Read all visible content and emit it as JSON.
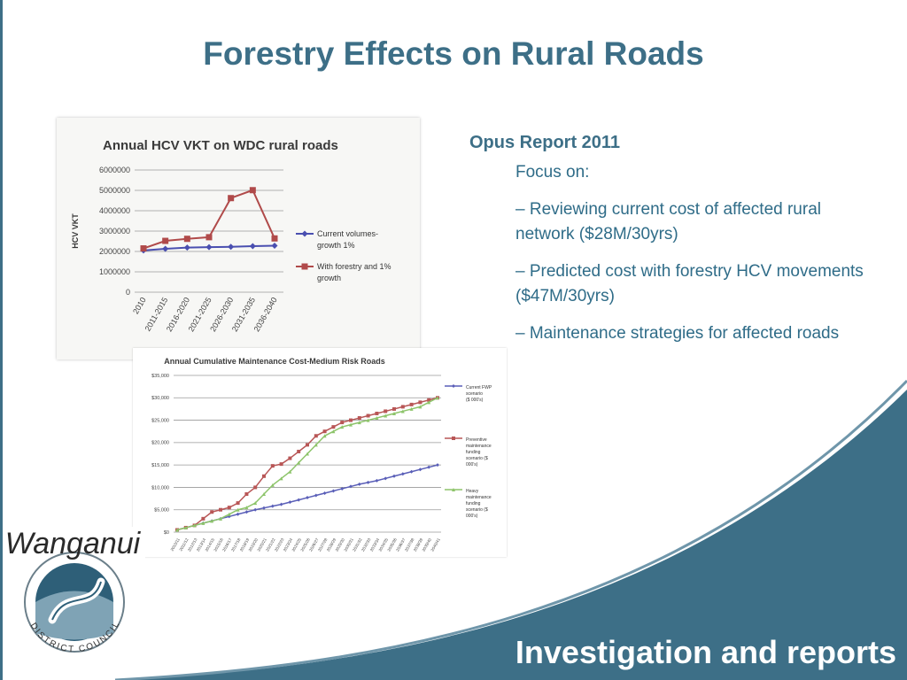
{
  "slide": {
    "title": "Forestry Effects on Rural Roads",
    "footer": "Investigation and reports",
    "accent_color": "#3d6f87"
  },
  "report": {
    "heading": "Opus Report 2011",
    "focus": "Focus on:",
    "items": [
      "– Reviewing current cost of affected rural network ($28M/30yrs)",
      "– Predicted cost with forestry HCV movements ($47M/30yrs)",
      "– Maintenance strategies for affected roads"
    ]
  },
  "logo": {
    "icon": "wanganui-district-council-logo",
    "name": "Wanganui",
    "subtitle": "DISTRICT COUNCIL"
  },
  "chart_data": [
    {
      "type": "line",
      "title": "Annual HCV VKT on WDC rural roads",
      "ylabel": "HCV VKT",
      "xlabel": "",
      "categories": [
        "2010",
        "2011-2015",
        "2016-2020",
        "2021-2025",
        "2026-2030",
        "2031-2035",
        "2036-2040"
      ],
      "ylim": [
        0,
        6000000
      ],
      "yticks": [
        0,
        1000000,
        2000000,
        3000000,
        4000000,
        5000000,
        6000000
      ],
      "ytick_labels": [
        "0",
        "1000000",
        "2000000",
        "3000000",
        "4000000",
        "5000000",
        "6000000"
      ],
      "grid": true,
      "legend": "right",
      "series": [
        {
          "name": "Current volumes-growth 1%",
          "legend_lines": [
            "Current volumes-",
            "growth 1%"
          ],
          "color": "#4a4fb0",
          "marker": "diamond",
          "values": [
            2050000,
            2130000,
            2190000,
            2210000,
            2230000,
            2260000,
            2280000
          ]
        },
        {
          "name": "With forestry and 1% growth",
          "legend_lines": [
            "With forestry and 1%",
            "growth"
          ],
          "color": "#b04a4a",
          "marker": "square",
          "values": [
            2150000,
            2520000,
            2620000,
            2700000,
            4620000,
            5010000,
            2640000
          ]
        }
      ]
    },
    {
      "type": "line",
      "title": "Annual Cumulative Maintenance Cost-Medium Risk Roads",
      "xlabel": "",
      "ylabel": "",
      "ylim": [
        0,
        35000
      ],
      "yticks": [
        0,
        5000,
        10000,
        15000,
        20000,
        25000,
        30000,
        35000
      ],
      "ytick_labels": [
        "$0",
        "$5,000",
        "$10,000",
        "$15,000",
        "$20,000",
        "$25,000",
        "$30,000",
        "$35,000"
      ],
      "categories": [
        "2010/11",
        "2011/12",
        "2012/13",
        "2013/14",
        "2014/15",
        "2015/16",
        "2016/17",
        "2017/18",
        "2018/19",
        "2019/20",
        "2020/21",
        "2021/22",
        "2022/23",
        "2023/24",
        "2024/25",
        "2025/26",
        "2026/27",
        "2027/28",
        "2028/29",
        "2029/30",
        "2030/31",
        "2031/32",
        "2032/33",
        "2033/34",
        "2034/35",
        "2035/36",
        "2036/37",
        "2037/38",
        "2038/39",
        "2039/40",
        "2040/41"
      ],
      "grid": true,
      "legend": "right",
      "series": [
        {
          "name": "Current FWP scenario ($ 000's)",
          "legend_lines": [
            "Current FWP",
            "scenario",
            "($ 000's)"
          ],
          "color": "#5a5fb8",
          "marker": "diamond",
          "values": [
            500,
            1000,
            1500,
            2000,
            2500,
            3000,
            3500,
            4000,
            4500,
            5000,
            5400,
            5800,
            6200,
            6700,
            7200,
            7700,
            8200,
            8700,
            9200,
            9700,
            10200,
            10700,
            11100,
            11500,
            12000,
            12500,
            13000,
            13500,
            14000,
            14500,
            15000
          ]
        },
        {
          "name": "Preventive maintenance funding scenario ($ 000's)",
          "legend_lines": [
            "Preventive",
            "maintenance",
            "funding",
            "scenario ($",
            "000's)"
          ],
          "color": "#b85656",
          "marker": "square",
          "values": [
            500,
            1000,
            1500,
            3000,
            4500,
            5000,
            5500,
            6500,
            8500,
            10000,
            12500,
            14800,
            15200,
            16500,
            18000,
            19500,
            21500,
            22500,
            23500,
            24500,
            25000,
            25500,
            26000,
            26500,
            27000,
            27500,
            28000,
            28500,
            29000,
            29500,
            30000
          ]
        },
        {
          "name": "Heavy maintenance funding scenario ($ 000's)",
          "legend_lines": [
            "Heavy",
            "maintenance",
            "funding",
            "scenario ($",
            "000's)"
          ],
          "color": "#8dc46a",
          "marker": "triangle",
          "values": [
            500,
            1000,
            1500,
            2000,
            2500,
            3000,
            4000,
            5000,
            5500,
            6500,
            8500,
            10500,
            12000,
            13500,
            15500,
            17500,
            19500,
            21500,
            22500,
            23500,
            24000,
            24500,
            25000,
            25500,
            26000,
            26500,
            27000,
            27500,
            28000,
            29000,
            30000
          ]
        }
      ]
    }
  ]
}
